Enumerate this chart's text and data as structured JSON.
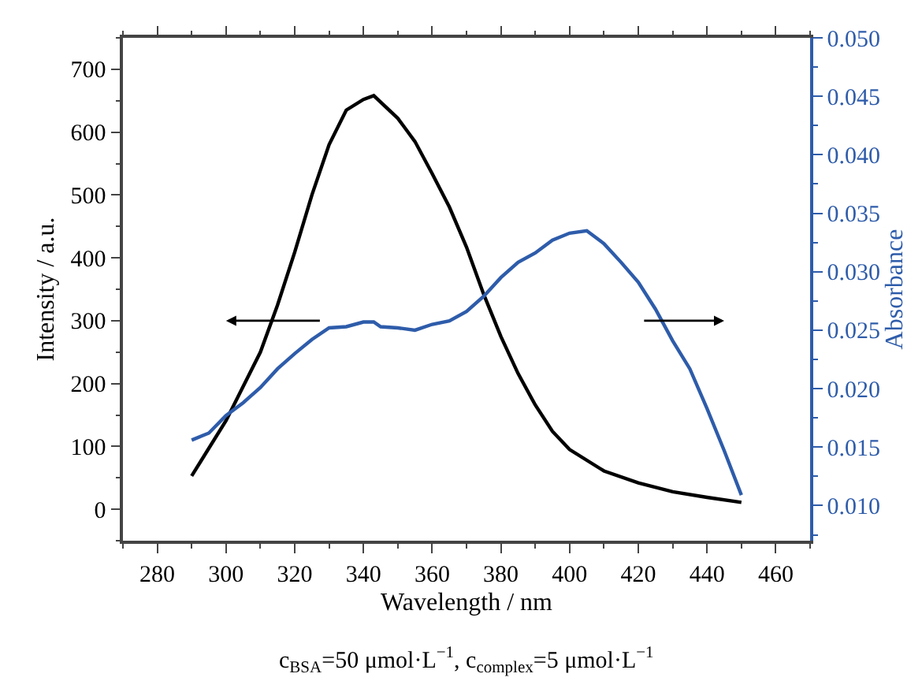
{
  "chart_data": {
    "type": "line",
    "xlabel": "Wavelength / nm",
    "ylabel": "Intensity / a.u.",
    "y2label": "Absorbance",
    "xlim": [
      270,
      470
    ],
    "xticks": [
      280,
      300,
      320,
      340,
      360,
      380,
      400,
      420,
      440,
      460
    ],
    "ylim": [
      -50,
      750
    ],
    "yticks": [
      0,
      100,
      200,
      300,
      400,
      500,
      600,
      700
    ],
    "y2lim": [
      0.007,
      0.05
    ],
    "y2ticks": [
      {
        "value": 0.01,
        "label": "0.010"
      },
      {
        "value": 0.015,
        "label": "0.015"
      },
      {
        "value": 0.02,
        "label": "0.020"
      },
      {
        "value": 0.025,
        "label": "0.025"
      },
      {
        "value": 0.03,
        "label": "0.030"
      },
      {
        "value": 0.035,
        "label": "0.035"
      },
      {
        "value": 0.04,
        "label": "0.040"
      },
      {
        "value": 0.045,
        "label": "0.045"
      },
      {
        "value": 0.05,
        "label": "0.050"
      }
    ],
    "grid": false,
    "marker": "none",
    "line_style": "solid",
    "series": [
      {
        "color": "#000000",
        "x": [
          290,
          300,
          310,
          315,
          320,
          325,
          330,
          335,
          340,
          343,
          350,
          355,
          360,
          365,
          370,
          375,
          380,
          385,
          390,
          395,
          400,
          410,
          420,
          430,
          440,
          450
        ],
        "values": [
          53,
          141,
          250,
          325,
          409,
          500,
          580,
          635,
          652,
          658,
          622,
          585,
          534,
          481,
          417,
          342,
          275,
          216,
          166,
          124,
          95,
          61,
          42,
          28,
          19,
          11
        ]
      },
      {
        "color": "#2e5caa",
        "axis": "y2",
        "x": [
          290,
          295,
          300,
          305,
          310,
          315,
          320,
          325,
          330,
          335,
          340,
          343,
          345,
          350,
          355,
          360,
          365,
          370,
          375,
          380,
          385,
          390,
          395,
          400,
          405,
          410,
          415,
          420,
          425,
          430,
          435,
          440,
          445,
          450
        ],
        "values": [
          0.0156,
          0.0162,
          0.0177,
          0.0188,
          0.0201,
          0.0217,
          0.023,
          0.0242,
          0.0252,
          0.0253,
          0.0257,
          0.0257,
          0.0253,
          0.0252,
          0.025,
          0.0255,
          0.0258,
          0.0266,
          0.0279,
          0.0295,
          0.0308,
          0.0316,
          0.0327,
          0.0333,
          0.0335,
          0.0324,
          0.0308,
          0.0291,
          0.0268,
          0.0241,
          0.0217,
          0.0183,
          0.0147,
          0.0109
        ]
      }
    ],
    "annotations": [
      "c$_{BSA}$=50 μmol·L$^{−1}$, c$_{complex}$=5 μmol·L$^{−1}$"
    ]
  }
}
